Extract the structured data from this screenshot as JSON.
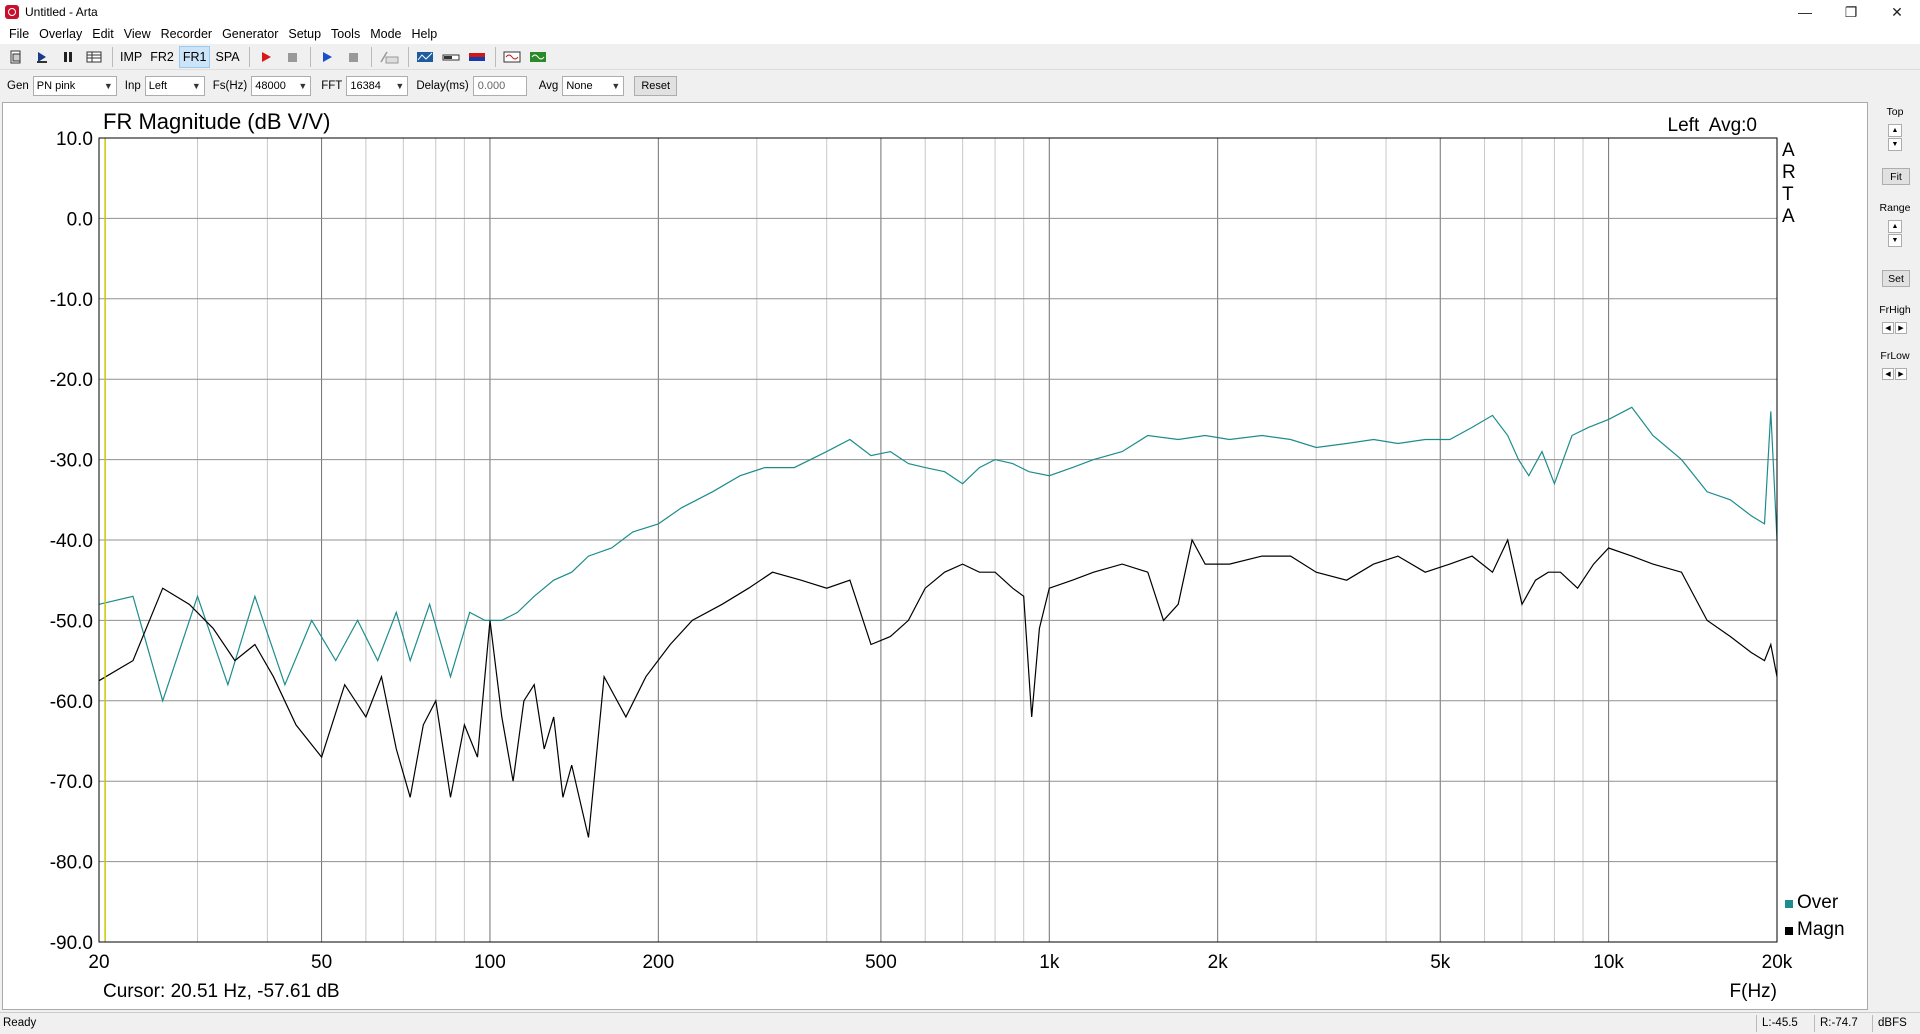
{
  "window": {
    "title": "Untitled - Arta",
    "controls": {
      "minimize": "—",
      "restore": "❐",
      "close": "✕"
    }
  },
  "menu": [
    "File",
    "Overlay",
    "Edit",
    "View",
    "Recorder",
    "Generator",
    "Setup",
    "Tools",
    "Mode",
    "Help"
  ],
  "toolbar": {
    "mode_buttons": [
      "IMP",
      "FR2",
      "FR1",
      "SPA"
    ],
    "active_mode": "FR1",
    "icons": [
      "new-icon",
      "open-icon",
      "pause-icon",
      "grid-icon",
      "record-icon",
      "stop-icon",
      "play-icon",
      "stop-icon",
      "rec-icon",
      "scope-icon",
      "meter-icon",
      "signal-icon",
      "waveform-icon",
      "generator-icon"
    ]
  },
  "params": {
    "gen_label": "Gen",
    "gen_value": "PN pink",
    "inp_label": "Inp",
    "inp_value": "Left",
    "fs_label": "Fs(Hz)",
    "fs_value": "48000",
    "fft_label": "FFT",
    "fft_value": "16384",
    "delay_label": "Delay(ms)",
    "delay_value": "0.000",
    "avg_label": "Avg",
    "avg_value": "None",
    "reset_label": "Reset"
  },
  "right_panel": {
    "top_label": "Top",
    "fit_label": "Fit",
    "range_label": "Range",
    "set_label": "Set",
    "frhigh_label": "FrHigh",
    "frlow_label": "FrLow"
  },
  "status": {
    "ready": "Ready",
    "left_level": "L:-45.5",
    "right_level": "R:-74.7",
    "units": "dBFS"
  },
  "chart_data": {
    "type": "line",
    "title": "FR Magnitude (dB V/V)",
    "top_right_text": "Left  Avg:0",
    "vertical_brand": [
      "A",
      "R",
      "T",
      "A"
    ],
    "xlabel": "F(Hz)",
    "x_scale": "log",
    "xlim": [
      20,
      20000
    ],
    "ylim": [
      -90,
      10
    ],
    "x_ticks": [
      20,
      50,
      100,
      200,
      500,
      1000,
      2000,
      5000,
      10000,
      20000
    ],
    "x_tick_labels": [
      "20",
      "50",
      "100",
      "200",
      "500",
      "1k",
      "2k",
      "5k",
      "10k",
      "20k"
    ],
    "y_ticks": [
      10,
      0,
      -10,
      -20,
      -30,
      -40,
      -50,
      -60,
      -70,
      -80,
      -90
    ],
    "y_tick_labels": [
      "10.0",
      "0.0",
      "-10.0",
      "-20.0",
      "-30.0",
      "-40.0",
      "-50.0",
      "-60.0",
      "-70.0",
      "-80.0",
      "-90.0"
    ],
    "grid": true,
    "legend_position": "bottom-right",
    "cursor_text": "Cursor: 20.51 Hz, -57.61 dB",
    "cursor_freq": 20.51,
    "cursor_color": "#c8c800",
    "series": [
      {
        "name": "Over",
        "color": "#1e8c8c",
        "x": [
          20,
          23,
          26,
          30,
          34,
          38,
          43,
          48,
          53,
          58,
          63,
          68,
          72,
          78,
          85,
          92,
          98,
          105,
          112,
          120,
          130,
          140,
          150,
          165,
          180,
          200,
          220,
          250,
          280,
          310,
          350,
          400,
          440,
          480,
          520,
          560,
          600,
          650,
          700,
          750,
          800,
          860,
          920,
          1000,
          1100,
          1200,
          1350,
          1500,
          1700,
          1900,
          2100,
          2400,
          2700,
          3000,
          3400,
          3800,
          4200,
          4700,
          5200,
          5700,
          6200,
          6600,
          6900,
          7200,
          7600,
          8000,
          8600,
          9200,
          10000,
          11000,
          12000,
          13500,
          15000,
          16500,
          18000,
          19000,
          19500,
          20000
        ],
        "values": [
          -48,
          -47,
          -60,
          -47,
          -58,
          -47,
          -58,
          -50,
          -55,
          -50,
          -55,
          -49,
          -55,
          -48,
          -57,
          -49,
          -50,
          -50,
          -49,
          -47,
          -45,
          -44,
          -42,
          -41,
          -39,
          -38,
          -36,
          -34,
          -32,
          -31,
          -31,
          -29,
          -27.5,
          -29.5,
          -29,
          -30.5,
          -31,
          -31.5,
          -33,
          -31,
          -30,
          -30.5,
          -31.5,
          -32,
          -31,
          -30,
          -29,
          -27,
          -27.5,
          -27,
          -27.5,
          -27,
          -27.5,
          -28.5,
          -28,
          -27.5,
          -28,
          -27.5,
          -27.5,
          -26,
          -24.5,
          -27,
          -30,
          -32,
          -29,
          -33,
          -27,
          -26,
          -25,
          -23.5,
          -27,
          -30,
          -34,
          -35,
          -37,
          -38,
          -24,
          -40
        ]
      },
      {
        "name": "Magn",
        "color": "#000000",
        "x": [
          20,
          23,
          26,
          29,
          32,
          35,
          38,
          41,
          45,
          50,
          55,
          60,
          64,
          68,
          72,
          76,
          80,
          85,
          90,
          95,
          100,
          105,
          110,
          115,
          120,
          125,
          130,
          135,
          140,
          150,
          160,
          175,
          190,
          210,
          230,
          260,
          290,
          320,
          360,
          400,
          440,
          480,
          520,
          560,
          600,
          650,
          700,
          750,
          800,
          860,
          900,
          930,
          960,
          1000,
          1100,
          1200,
          1350,
          1500,
          1600,
          1700,
          1800,
          1900,
          2100,
          2400,
          2700,
          3000,
          3400,
          3800,
          4200,
          4700,
          5200,
          5700,
          6200,
          6600,
          7000,
          7400,
          7800,
          8200,
          8800,
          9400,
          10000,
          11000,
          12000,
          13500,
          15000,
          16500,
          18000,
          19000,
          19500,
          20000
        ],
        "values": [
          -57.5,
          -55,
          -46,
          -48,
          -51,
          -55,
          -53,
          -57,
          -63,
          -67,
          -58,
          -62,
          -57,
          -66,
          -72,
          -63,
          -60,
          -72,
          -63,
          -67,
          -50,
          -62,
          -70,
          -60,
          -58,
          -66,
          -62,
          -72,
          -68,
          -77,
          -57,
          -62,
          -57,
          -53,
          -50,
          -48,
          -46,
          -44,
          -45,
          -46,
          -45,
          -53,
          -52,
          -50,
          -46,
          -44,
          -43,
          -44,
          -44,
          -46,
          -47,
          -62,
          -51,
          -46,
          -45,
          -44,
          -43,
          -44,
          -50,
          -48,
          -40,
          -43,
          -43,
          -42,
          -42,
          -44,
          -45,
          -43,
          -42,
          -44,
          -43,
          -42,
          -44,
          -40,
          -48,
          -45,
          -44,
          -44,
          -46,
          -43,
          -41,
          -42,
          -43,
          -44,
          -50,
          -52,
          -54,
          -55,
          -53,
          -57
        ]
      }
    ]
  }
}
